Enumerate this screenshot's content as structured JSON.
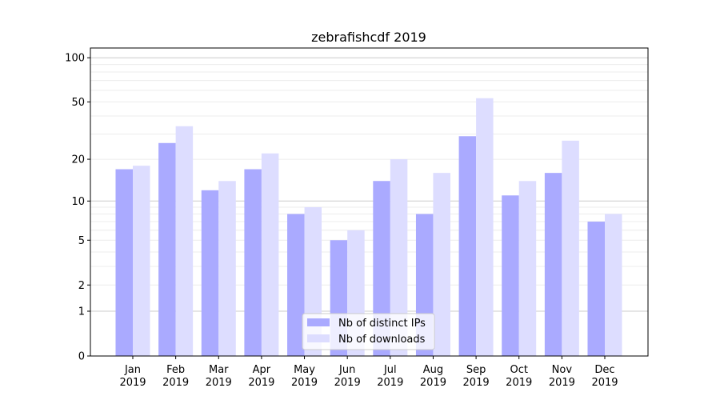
{
  "chart_data": {
    "type": "bar",
    "title": "zebrafishcdf 2019",
    "xlabel": "",
    "ylabel": "",
    "yscale": "log(1+y)",
    "ylim": [
      0,
      110
    ],
    "yticks": [
      0,
      1,
      2,
      5,
      10,
      20,
      50,
      100
    ],
    "grid": true,
    "legend_position": "bottom-center",
    "categories": [
      "Jan\n2019",
      "Feb\n2019",
      "Mar\n2019",
      "Apr\n2019",
      "May\n2019",
      "Jun\n2019",
      "Jul\n2019",
      "Aug\n2019",
      "Sep\n2019",
      "Oct\n2019",
      "Nov\n2019",
      "Dec\n2019"
    ],
    "series": [
      {
        "name": "Nb of distinct IPs",
        "color": "#aaaaff",
        "values": [
          17,
          26,
          12,
          17,
          8,
          5,
          14,
          8,
          29,
          11,
          16,
          7
        ]
      },
      {
        "name": "Nb of downloads",
        "color": "#ddddff",
        "values": [
          18,
          34,
          14,
          22,
          9,
          6,
          20,
          16,
          53,
          14,
          27,
          8
        ]
      }
    ]
  }
}
